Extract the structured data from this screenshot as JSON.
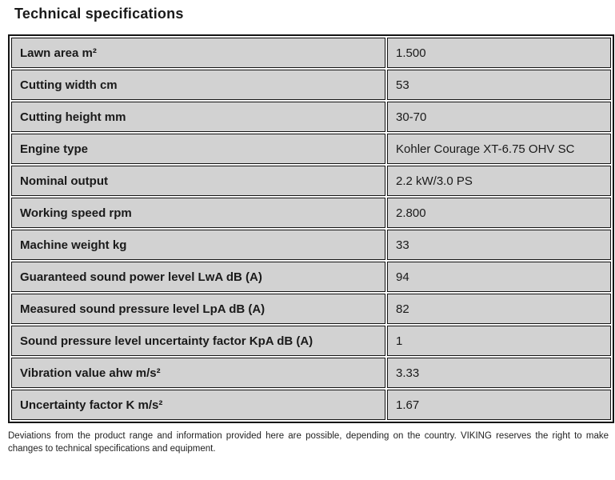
{
  "page": {
    "title": "Technical specifications",
    "footer": "Deviations from the product range and information provided here are possible, depending on the country. VIKING reserves the right to make changes to technical specifications and equipment."
  },
  "table": {
    "rows": [
      {
        "label": "Lawn area m²",
        "value": "1.500"
      },
      {
        "label": "Cutting width cm",
        "value": "53"
      },
      {
        "label": "Cutting height mm",
        "value": "30-70"
      },
      {
        "label": "Engine type",
        "value": "Kohler Courage XT-6.75 OHV SC"
      },
      {
        "label": "Nominal output",
        "value": "2.2 kW/3.0 PS"
      },
      {
        "label": "Working speed rpm",
        "value": "2.800"
      },
      {
        "label": "Machine weight kg",
        "value": "33"
      },
      {
        "label": "Guaranteed sound power level LwA dB (A)",
        "value": "94"
      },
      {
        "label": "Measured sound pressure level LpA dB (A)",
        "value": "82"
      },
      {
        "label": "Sound pressure level uncertainty factor KpA dB (A)",
        "value": "1"
      },
      {
        "label": "Vibration value ahw m/s²",
        "value": "3.33"
      },
      {
        "label": "Uncertainty factor K m/s²",
        "value": "1.67"
      }
    ]
  },
  "colors": {
    "cell_background": "#d2d2d2",
    "border": "#141414",
    "text": "#1a1a1a",
    "cell_gap": "#fafafa"
  }
}
